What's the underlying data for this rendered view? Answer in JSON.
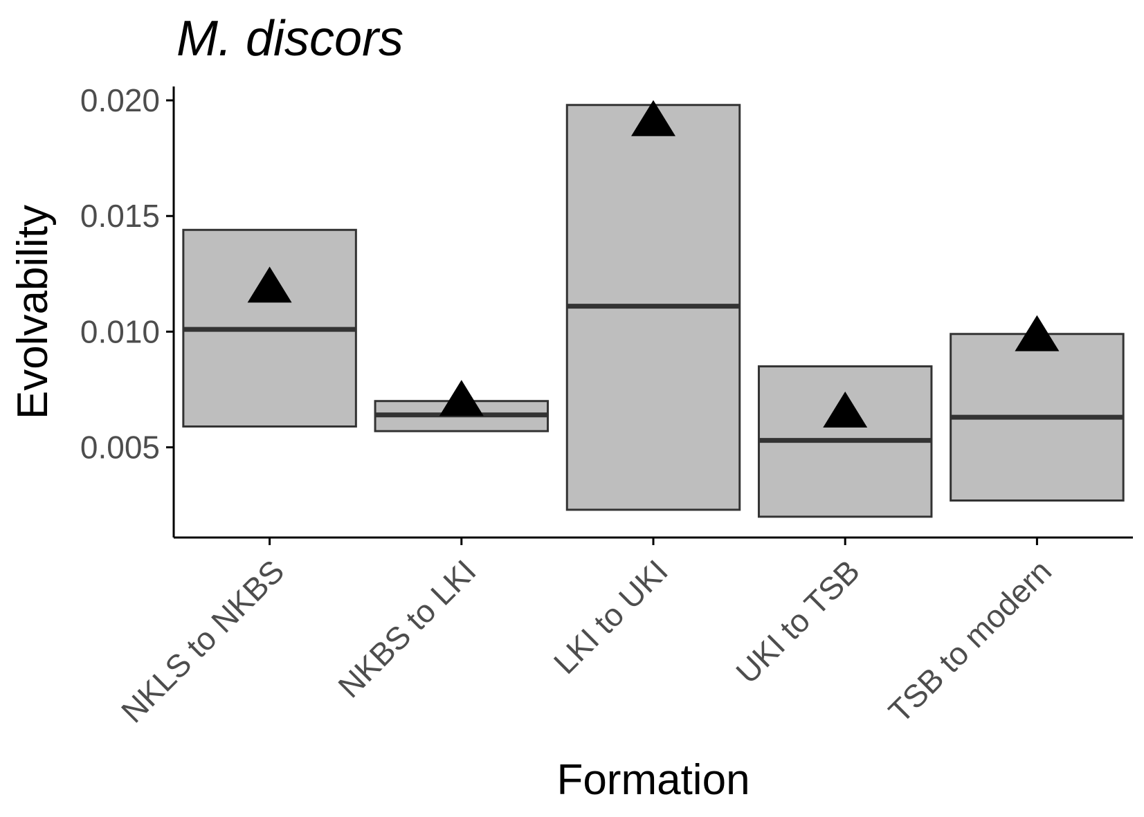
{
  "chart_data": {
    "type": "box",
    "title": "M. discors",
    "xlabel": "Formation",
    "ylabel": "Evolvability",
    "ylim": [
      0.0011,
      0.0206
    ],
    "yticks": [
      0.005,
      0.01,
      0.015,
      0.02
    ],
    "ytick_labels": [
      "0.005",
      "0.010",
      "0.015",
      "0.020"
    ],
    "grid": false,
    "legend": "none",
    "categories": [
      "NKLS to NKBS",
      "NKBS to LKI",
      "LKI to UKI",
      "UKI to TSB",
      "TSB to modern"
    ],
    "boxes": [
      {
        "category": "NKLS to NKBS",
        "lower": 0.0059,
        "median": 0.0101,
        "upper": 0.0144,
        "mean": 0.0118
      },
      {
        "category": "NKBS to LKI",
        "lower": 0.0057,
        "median": 0.0064,
        "upper": 0.007,
        "mean": 0.0069
      },
      {
        "category": "LKI to UKI",
        "lower": 0.0023,
        "median": 0.0111,
        "upper": 0.0198,
        "mean": 0.019
      },
      {
        "category": "UKI to TSB",
        "lower": 0.002,
        "median": 0.0053,
        "upper": 0.0085,
        "mean": 0.0064
      },
      {
        "category": "TSB to modern",
        "lower": 0.0027,
        "median": 0.0063,
        "upper": 0.0099,
        "mean": 0.0097
      }
    ],
    "colors": {
      "box_fill": "#bebebe",
      "box_stroke": "#333333",
      "marker": "#000000",
      "tick_text": "#4d4d4d"
    },
    "mean_marker": "triangle"
  }
}
